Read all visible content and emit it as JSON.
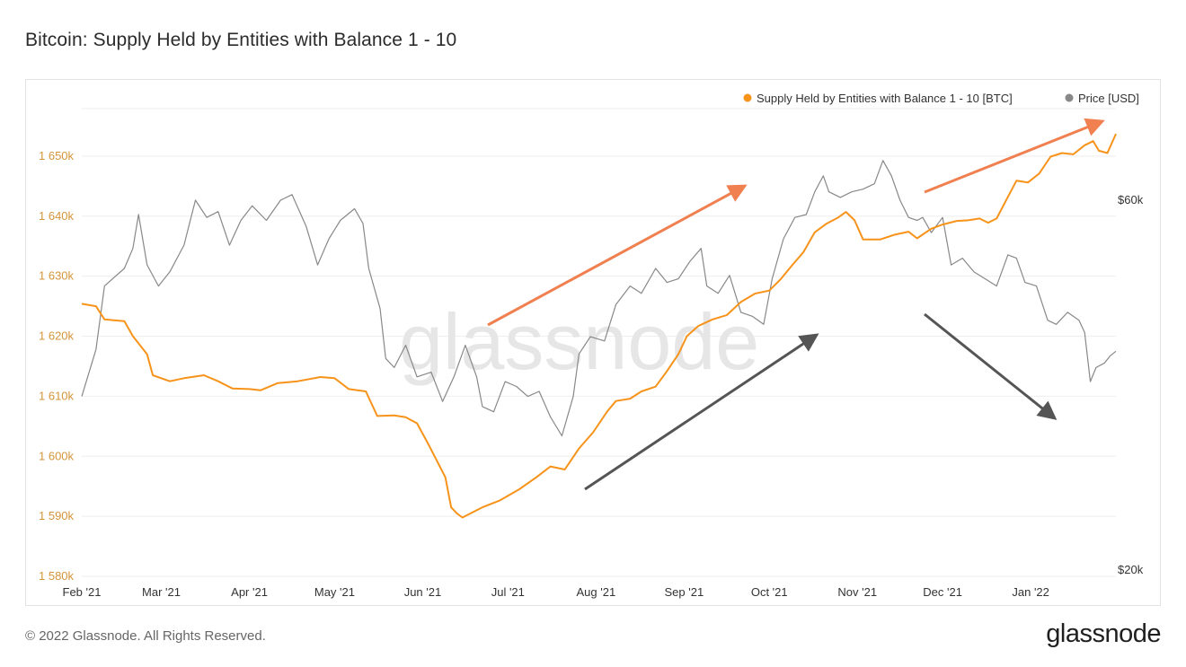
{
  "title": "Bitcoin: Supply Held by Entities with Balance 1 - 10",
  "copyright": "© 2022 Glassnode. All Rights Reserved.",
  "brand": "glassnode",
  "watermark": "glassnode",
  "colors": {
    "supply": "#f7931a",
    "price": "#888888",
    "arrow_up": "#f08050",
    "arrow_dark": "#555555",
    "grid": "#eeeeee"
  },
  "chart_data": {
    "type": "line",
    "x_ticks": [
      "Feb '21",
      "Mar '21",
      "Apr '21",
      "May '21",
      "Jun '21",
      "Jul '21",
      "Aug '21",
      "Sep '21",
      "Oct '21",
      "Nov '21",
      "Dec '21",
      "Jan '22"
    ],
    "x_range": [
      "2021-02-01",
      "2022-01-31"
    ],
    "left_axis": {
      "tick_labels": [
        "1 580k",
        "1 590k",
        "1 600k",
        "1 610k",
        "1 620k",
        "1 630k",
        "1 640k",
        "1 650k"
      ],
      "range": [
        1580000,
        1660000
      ]
    },
    "right_axis": {
      "tick_labels": [
        "$20k",
        "$60k"
      ],
      "scale": "log"
    },
    "legend": {
      "placement": "top-right"
    },
    "grid": true,
    "series": [
      {
        "name": "Supply Held by Entities with Balance 1 - 10 [BTC]",
        "axis": "left",
        "points": [
          [
            "2021-02-01",
            1625400
          ],
          [
            "2021-02-06",
            1625000
          ],
          [
            "2021-02-09",
            1622800
          ],
          [
            "2021-02-16",
            1622500
          ],
          [
            "2021-02-19",
            1620000
          ],
          [
            "2021-02-24",
            1617000
          ],
          [
            "2021-02-26",
            1613500
          ],
          [
            "2021-03-04",
            1612500
          ],
          [
            "2021-03-09",
            1613000
          ],
          [
            "2021-03-16",
            1613500
          ],
          [
            "2021-03-21",
            1612500
          ],
          [
            "2021-03-26",
            1611300
          ],
          [
            "2021-04-01",
            1611200
          ],
          [
            "2021-04-05",
            1611000
          ],
          [
            "2021-04-11",
            1612200
          ],
          [
            "2021-04-18",
            1612500
          ],
          [
            "2021-04-26",
            1613200
          ],
          [
            "2021-05-01",
            1613000
          ],
          [
            "2021-05-06",
            1611200
          ],
          [
            "2021-05-12",
            1610800
          ],
          [
            "2021-05-16",
            1606700
          ],
          [
            "2021-05-22",
            1606800
          ],
          [
            "2021-05-26",
            1606500
          ],
          [
            "2021-05-30",
            1605500
          ],
          [
            "2021-06-03",
            1602000
          ],
          [
            "2021-06-09",
            1596500
          ],
          [
            "2021-06-11",
            1591500
          ],
          [
            "2021-06-13",
            1590500
          ],
          [
            "2021-06-15",
            1589800
          ],
          [
            "2021-06-22",
            1591500
          ],
          [
            "2021-06-28",
            1592600
          ],
          [
            "2021-07-05",
            1594500
          ],
          [
            "2021-07-11",
            1596500
          ],
          [
            "2021-07-16",
            1598300
          ],
          [
            "2021-07-21",
            1597800
          ],
          [
            "2021-07-26",
            1601300
          ],
          [
            "2021-07-31",
            1604000
          ],
          [
            "2021-08-05",
            1607500
          ],
          [
            "2021-08-08",
            1609200
          ],
          [
            "2021-08-13",
            1609600
          ],
          [
            "2021-08-17",
            1610800
          ],
          [
            "2021-08-22",
            1611600
          ],
          [
            "2021-08-26",
            1614200
          ],
          [
            "2021-08-30",
            1617000
          ],
          [
            "2021-09-02",
            1620000
          ],
          [
            "2021-09-06",
            1621700
          ],
          [
            "2021-09-11",
            1622800
          ],
          [
            "2021-09-16",
            1623500
          ],
          [
            "2021-09-21",
            1625700
          ],
          [
            "2021-09-26",
            1627100
          ],
          [
            "2021-10-01",
            1627600
          ],
          [
            "2021-10-05",
            1629500
          ],
          [
            "2021-10-09",
            1631800
          ],
          [
            "2021-10-13",
            1634000
          ],
          [
            "2021-10-17",
            1637300
          ],
          [
            "2021-10-21",
            1638700
          ],
          [
            "2021-10-25",
            1639700
          ],
          [
            "2021-10-28",
            1640700
          ],
          [
            "2021-10-31",
            1639300
          ],
          [
            "2021-11-03",
            1636100
          ],
          [
            "2021-11-09",
            1636100
          ],
          [
            "2021-11-14",
            1636900
          ],
          [
            "2021-11-19",
            1637400
          ],
          [
            "2021-11-22",
            1636300
          ],
          [
            "2021-11-27",
            1637900
          ],
          [
            "2021-12-01",
            1638600
          ],
          [
            "2021-12-06",
            1639200
          ],
          [
            "2021-12-10",
            1639300
          ],
          [
            "2021-12-14",
            1639600
          ],
          [
            "2021-12-17",
            1638900
          ],
          [
            "2021-12-20",
            1639600
          ],
          [
            "2021-12-24",
            1643200
          ],
          [
            "2021-12-27",
            1645900
          ],
          [
            "2021-12-31",
            1645600
          ],
          [
            "2022-01-04",
            1647100
          ],
          [
            "2022-01-08",
            1649900
          ],
          [
            "2022-01-12",
            1650500
          ],
          [
            "2022-01-16",
            1650300
          ],
          [
            "2022-01-20",
            1651800
          ],
          [
            "2022-01-23",
            1652500
          ],
          [
            "2022-01-25",
            1650900
          ],
          [
            "2022-01-28",
            1650500
          ],
          [
            "2022-01-31",
            1653700
          ]
        ]
      },
      {
        "name": "Price [USD]",
        "axis": "right",
        "points": [
          [
            "2021-02-01",
            33500
          ],
          [
            "2021-02-06",
            38500
          ],
          [
            "2021-02-09",
            46500
          ],
          [
            "2021-02-16",
            49000
          ],
          [
            "2021-02-19",
            52000
          ],
          [
            "2021-02-21",
            57500
          ],
          [
            "2021-02-24",
            49500
          ],
          [
            "2021-02-28",
            46500
          ],
          [
            "2021-03-04",
            48500
          ],
          [
            "2021-03-09",
            52500
          ],
          [
            "2021-03-13",
            60000
          ],
          [
            "2021-03-17",
            57000
          ],
          [
            "2021-03-21",
            58000
          ],
          [
            "2021-03-25",
            52500
          ],
          [
            "2021-03-29",
            56500
          ],
          [
            "2021-04-02",
            59000
          ],
          [
            "2021-04-07",
            56500
          ],
          [
            "2021-04-12",
            60000
          ],
          [
            "2021-04-16",
            61000
          ],
          [
            "2021-04-21",
            55500
          ],
          [
            "2021-04-25",
            49500
          ],
          [
            "2021-04-29",
            53500
          ],
          [
            "2021-05-03",
            56500
          ],
          [
            "2021-05-08",
            58500
          ],
          [
            "2021-05-11",
            56000
          ],
          [
            "2021-05-13",
            49000
          ],
          [
            "2021-05-17",
            43500
          ],
          [
            "2021-05-19",
            37500
          ],
          [
            "2021-05-22",
            36500
          ],
          [
            "2021-05-26",
            39000
          ],
          [
            "2021-05-30",
            35500
          ],
          [
            "2021-06-04",
            36000
          ],
          [
            "2021-06-08",
            33000
          ],
          [
            "2021-06-12",
            35500
          ],
          [
            "2021-06-16",
            39000
          ],
          [
            "2021-06-20",
            35500
          ],
          [
            "2021-06-22",
            32500
          ],
          [
            "2021-06-26",
            32000
          ],
          [
            "2021-06-30",
            35000
          ],
          [
            "2021-07-04",
            34500
          ],
          [
            "2021-07-08",
            33500
          ],
          [
            "2021-07-12",
            34000
          ],
          [
            "2021-07-16",
            31500
          ],
          [
            "2021-07-20",
            29800
          ],
          [
            "2021-07-24",
            33500
          ],
          [
            "2021-07-26",
            38000
          ],
          [
            "2021-07-30",
            40000
          ],
          [
            "2021-08-04",
            39500
          ],
          [
            "2021-08-08",
            44000
          ],
          [
            "2021-08-13",
            46500
          ],
          [
            "2021-08-17",
            45500
          ],
          [
            "2021-08-22",
            49000
          ],
          [
            "2021-08-26",
            47000
          ],
          [
            "2021-08-30",
            47500
          ],
          [
            "2021-09-03",
            50000
          ],
          [
            "2021-09-07",
            52000
          ],
          [
            "2021-09-09",
            46500
          ],
          [
            "2021-09-13",
            45500
          ],
          [
            "2021-09-17",
            48000
          ],
          [
            "2021-09-21",
            43000
          ],
          [
            "2021-09-25",
            42500
          ],
          [
            "2021-09-29",
            41500
          ],
          [
            "2021-10-02",
            47500
          ],
          [
            "2021-10-06",
            53500
          ],
          [
            "2021-10-10",
            57000
          ],
          [
            "2021-10-14",
            57500
          ],
          [
            "2021-10-17",
            61500
          ],
          [
            "2021-10-20",
            64500
          ],
          [
            "2021-10-22",
            61500
          ],
          [
            "2021-10-26",
            60500
          ],
          [
            "2021-10-30",
            61500
          ],
          [
            "2021-11-03",
            62000
          ],
          [
            "2021-11-07",
            63000
          ],
          [
            "2021-11-10",
            67500
          ],
          [
            "2021-11-13",
            64500
          ],
          [
            "2021-11-16",
            60000
          ],
          [
            "2021-11-19",
            57000
          ],
          [
            "2021-11-22",
            56500
          ],
          [
            "2021-11-24",
            57000
          ],
          [
            "2021-11-27",
            54500
          ],
          [
            "2021-12-01",
            57000
          ],
          [
            "2021-12-04",
            49500
          ],
          [
            "2021-12-08",
            50500
          ],
          [
            "2021-12-12",
            48500
          ],
          [
            "2021-12-16",
            47500
          ],
          [
            "2021-12-20",
            46500
          ],
          [
            "2021-12-24",
            51000
          ],
          [
            "2021-12-27",
            50500
          ],
          [
            "2021-12-30",
            47000
          ],
          [
            "2022-01-03",
            46500
          ],
          [
            "2022-01-07",
            42000
          ],
          [
            "2022-01-10",
            41500
          ],
          [
            "2022-01-14",
            43000
          ],
          [
            "2022-01-18",
            42000
          ],
          [
            "2022-01-20",
            40500
          ],
          [
            "2022-01-22",
            35000
          ],
          [
            "2022-01-24",
            36500
          ],
          [
            "2022-01-27",
            37000
          ],
          [
            "2022-01-29",
            37800
          ],
          [
            "2022-01-31",
            38300
          ]
        ]
      }
    ]
  }
}
